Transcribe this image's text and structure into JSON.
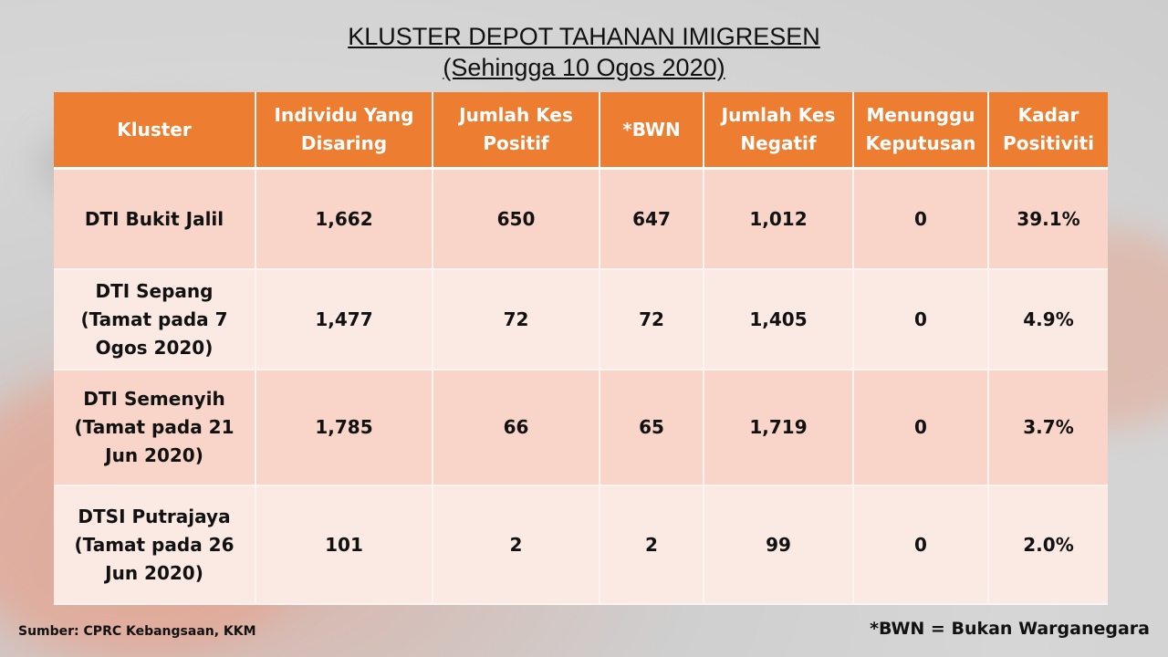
{
  "title_line1": "KLUSTER DEPOT TAHANAN IMIGRESEN",
  "title_line2": "(Sehingga 10 Ogos 2020)",
  "table": {
    "headers": [
      "Kluster",
      "Individu Yang Disaring",
      "Jumlah Kes Positif",
      "*BWN",
      "Jumlah Kes Negatif",
      "Menunggu Keputusan",
      "Kadar Positiviti"
    ],
    "rows": [
      [
        "DTI Bukit Jalil",
        "1,662",
        "650",
        "647",
        "1,012",
        "0",
        "39.1%"
      ],
      [
        "DTI Sepang (Tamat pada 7 Ogos 2020)",
        "1,477",
        "72",
        "72",
        "1,405",
        "0",
        "4.9%"
      ],
      [
        "DTI Semenyih (Tamat pada 21 Jun 2020)",
        "1,785",
        "66",
        "65",
        "1,719",
        "0",
        "3.7%"
      ],
      [
        "DTSI Putrajaya (Tamat pada 26 Jun 2020)",
        "101",
        "2",
        "2",
        "99",
        "0",
        "2.0%"
      ]
    ]
  },
  "source_note": "Sumber: CPRC Kebangsaan, KKM",
  "footnote": "*BWN = Bukan Warganegara"
}
